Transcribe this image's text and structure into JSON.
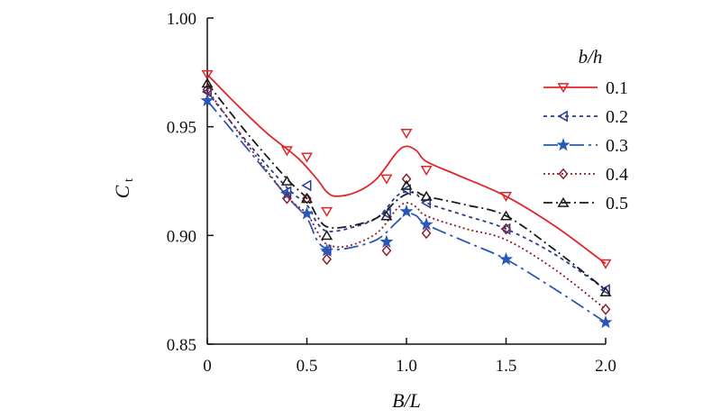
{
  "chart_data": {
    "type": "line",
    "xlabel": "B/L",
    "ylabel_main": "C",
    "ylabel_sub": "t",
    "xlim": [
      0,
      2.0
    ],
    "ylim": [
      0.85,
      1.0
    ],
    "xticks": [
      0,
      0.5,
      1.0,
      1.5,
      2.0
    ],
    "xtick_labels": [
      "0",
      "0.5",
      "1.0",
      "1.5",
      "2.0"
    ],
    "yticks": [
      0.85,
      0.9,
      0.95,
      1.0
    ],
    "ytick_labels": [
      "0.85",
      "0.90",
      "0.95",
      "1.00"
    ],
    "legend_title": "b/h",
    "legend_position": "right",
    "grid": false,
    "x": [
      0,
      0.4,
      0.5,
      0.6,
      0.9,
      1.0,
      1.1,
      1.5,
      2.0
    ],
    "series": [
      {
        "name": "0.1",
        "color": "#e0262b",
        "dash": "solid",
        "marker": "triangle-down",
        "values": [
          0.974,
          0.939,
          0.936,
          0.911,
          0.926,
          0.947,
          0.93,
          0.918,
          0.887
        ],
        "curve": [
          [
            0,
            0.974
          ],
          [
            0.15,
            0.96
          ],
          [
            0.3,
            0.947
          ],
          [
            0.45,
            0.936
          ],
          [
            0.55,
            0.926
          ],
          [
            0.6,
            0.92
          ],
          [
            0.65,
            0.918
          ],
          [
            0.75,
            0.92
          ],
          [
            0.85,
            0.926
          ],
          [
            0.95,
            0.938
          ],
          [
            1.0,
            0.941
          ],
          [
            1.05,
            0.939
          ],
          [
            1.1,
            0.934
          ],
          [
            1.25,
            0.928
          ],
          [
            1.5,
            0.918
          ],
          [
            1.75,
            0.904
          ],
          [
            2.0,
            0.887
          ]
        ]
      },
      {
        "name": "0.2",
        "color": "#2b3a8f",
        "dash": "4,4",
        "marker": "triangle-left",
        "values": [
          0.966,
          0.92,
          0.923,
          0.893,
          0.91,
          0.921,
          0.915,
          0.903,
          0.875
        ],
        "curve": [
          [
            0,
            0.966
          ],
          [
            0.2,
            0.943
          ],
          [
            0.4,
            0.922
          ],
          [
            0.5,
            0.914
          ],
          [
            0.55,
            0.906
          ],
          [
            0.6,
            0.902
          ],
          [
            0.7,
            0.903
          ],
          [
            0.85,
            0.908
          ],
          [
            0.95,
            0.918
          ],
          [
            1.0,
            0.92
          ],
          [
            1.05,
            0.919
          ],
          [
            1.1,
            0.915
          ],
          [
            1.3,
            0.909
          ],
          [
            1.5,
            0.903
          ],
          [
            1.75,
            0.891
          ],
          [
            2.0,
            0.875
          ]
        ]
      },
      {
        "name": "0.3",
        "color": "#2a57b8",
        "dash": "16,5,3,5",
        "marker": "star",
        "values": [
          0.962,
          0.919,
          0.91,
          0.893,
          0.897,
          0.911,
          0.905,
          0.889,
          0.86
        ],
        "curve": [
          [
            0,
            0.962
          ],
          [
            0.2,
            0.94
          ],
          [
            0.4,
            0.918
          ],
          [
            0.5,
            0.908
          ],
          [
            0.55,
            0.898
          ],
          [
            0.6,
            0.894
          ],
          [
            0.7,
            0.894
          ],
          [
            0.85,
            0.898
          ],
          [
            0.95,
            0.906
          ],
          [
            1.0,
            0.91
          ],
          [
            1.05,
            0.909
          ],
          [
            1.1,
            0.905
          ],
          [
            1.3,
            0.897
          ],
          [
            1.5,
            0.889
          ],
          [
            1.75,
            0.875
          ],
          [
            2.0,
            0.86
          ]
        ]
      },
      {
        "name": "0.4",
        "color": "#8a1f2a",
        "dash": "2,3",
        "marker": "diamond",
        "values": [
          0.967,
          0.917,
          0.917,
          0.889,
          0.893,
          0.926,
          0.901,
          0.903,
          0.866
        ],
        "curve": [
          [
            0,
            0.967
          ],
          [
            0.2,
            0.942
          ],
          [
            0.4,
            0.918
          ],
          [
            0.5,
            0.91
          ],
          [
            0.55,
            0.902
          ],
          [
            0.6,
            0.896
          ],
          [
            0.7,
            0.895
          ],
          [
            0.85,
            0.901
          ],
          [
            0.95,
            0.912
          ],
          [
            1.0,
            0.915
          ],
          [
            1.05,
            0.913
          ],
          [
            1.1,
            0.909
          ],
          [
            1.3,
            0.903
          ],
          [
            1.5,
            0.898
          ],
          [
            1.75,
            0.884
          ],
          [
            2.0,
            0.866
          ]
        ]
      },
      {
        "name": "0.5",
        "color": "#1a1a1a",
        "dash": "10,4,2,4",
        "marker": "triangle-up",
        "values": [
          0.97,
          0.925,
          0.917,
          0.9,
          0.909,
          0.923,
          0.918,
          0.909,
          0.874
        ],
        "curve": [
          [
            0,
            0.97
          ],
          [
            0.2,
            0.947
          ],
          [
            0.4,
            0.926
          ],
          [
            0.5,
            0.917
          ],
          [
            0.55,
            0.909
          ],
          [
            0.6,
            0.904
          ],
          [
            0.7,
            0.904
          ],
          [
            0.85,
            0.908
          ],
          [
            0.95,
            0.916
          ],
          [
            1.0,
            0.919
          ],
          [
            1.05,
            0.92
          ],
          [
            1.1,
            0.918
          ],
          [
            1.3,
            0.914
          ],
          [
            1.5,
            0.909
          ],
          [
            1.75,
            0.893
          ],
          [
            2.0,
            0.875
          ]
        ]
      }
    ]
  }
}
